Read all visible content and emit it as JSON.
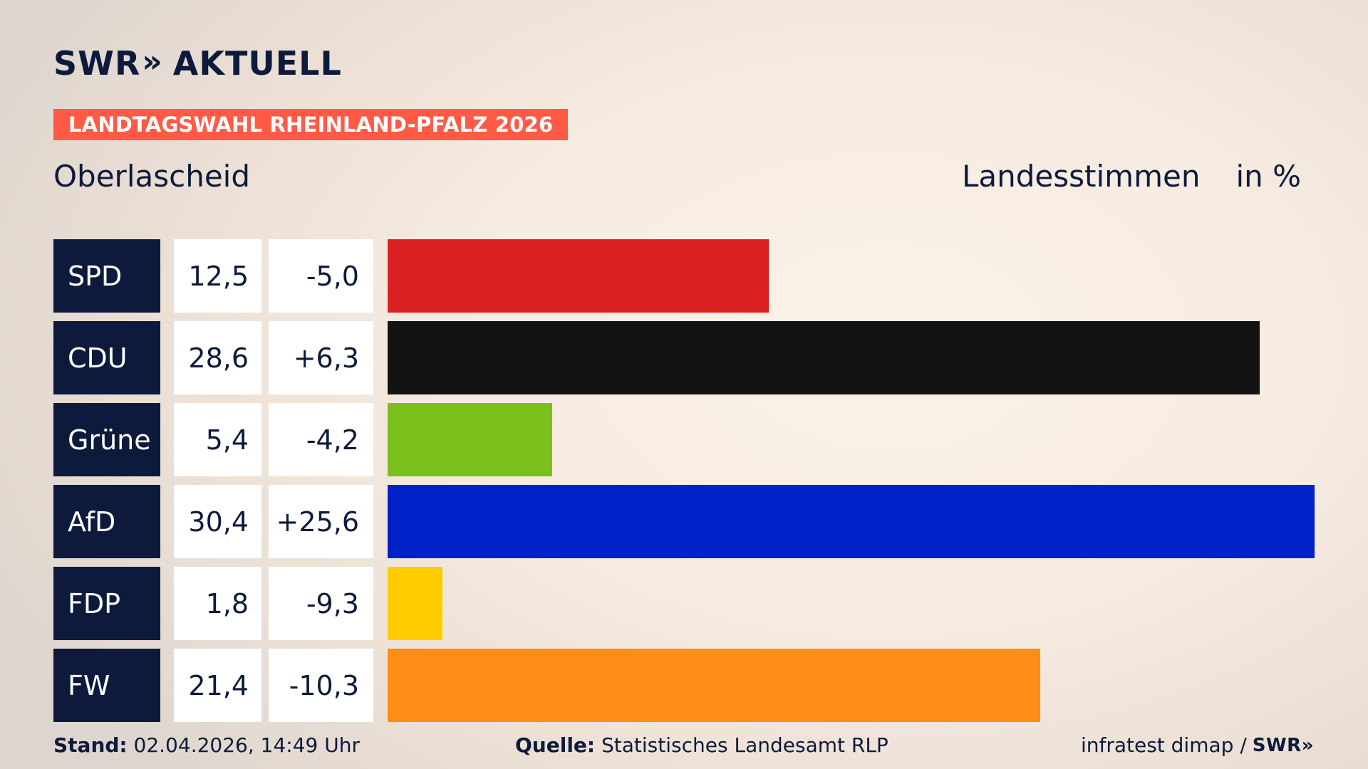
{
  "brand": {
    "logo_swr": "SWR",
    "logo_chevrons": "»",
    "logo_aktuell": "AKTUELL"
  },
  "badge": "LANDTAGSWAHL RHEINLAND-PFALZ 2026",
  "location": "Oberlascheid",
  "header": {
    "vote_type": "Landesstimmen",
    "unit": "in %"
  },
  "colors": {
    "accent": "#ff5a45",
    "navy": "#0d1a3b"
  },
  "chart_data": {
    "type": "bar",
    "orientation": "horizontal",
    "categories": [
      "SPD",
      "CDU",
      "Grüne",
      "AfD",
      "FDP",
      "FW"
    ],
    "values": [
      12.5,
      28.6,
      5.4,
      30.4,
      1.8,
      21.4
    ],
    "values_display": [
      "12,5",
      "28,6",
      "5,4",
      "30,4",
      "1,8",
      "21,4"
    ],
    "change": [
      -5.0,
      6.3,
      -4.2,
      25.6,
      -9.3,
      -10.3
    ],
    "change_display": [
      "-5,0",
      "+6,3",
      "-4,2",
      "+25,6",
      "-9,3",
      "-10,3"
    ],
    "bar_colors": [
      "#d91f1f",
      "#131313",
      "#7bbf1a",
      "#0020c8",
      "#ffcc00",
      "#ff8c17"
    ],
    "xlim": [
      0,
      30.4
    ],
    "grid": false,
    "ylabel": "Landesstimmen",
    "xlabel": "in %"
  },
  "footer": {
    "stand_label": "Stand:",
    "stand_value": "02.04.2026, 14:49 Uhr",
    "source_label": "Quelle:",
    "source_value": "Statistisches Landesamt RLP",
    "credit": "infratest dimap /",
    "credit_logo": "SWR»"
  }
}
